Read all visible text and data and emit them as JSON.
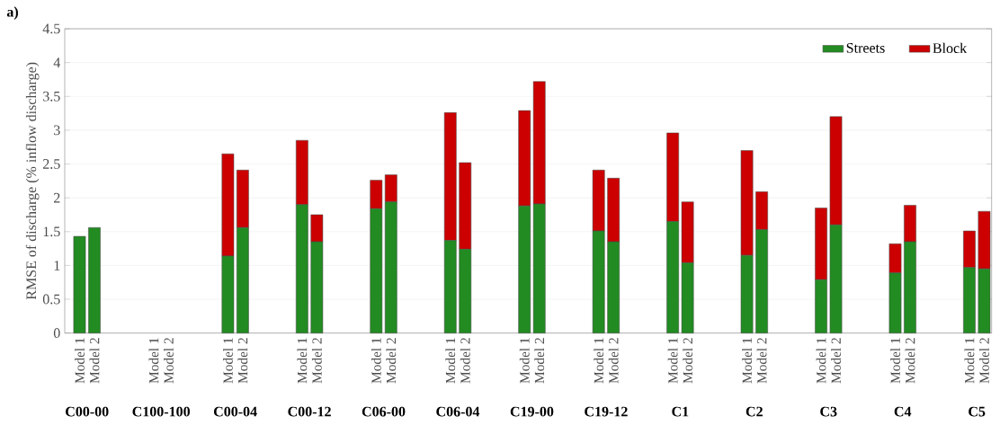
{
  "chart_data": {
    "type": "bar",
    "title": "a)",
    "ylabel": "RMSE of discharge (% inflow discharge)",
    "categories": [
      "Model 1",
      "Model 2",
      null,
      null,
      null,
      "Model 1",
      "Model 2",
      null,
      null,
      null,
      "Model 1",
      "Model 2",
      null,
      null,
      null,
      "Model 1",
      "Model 2",
      null,
      null,
      null,
      "Model 1",
      "Model 2",
      null,
      null,
      null,
      "Model 1",
      "Model 2",
      null,
      null,
      null,
      "Model 1",
      "Model 2",
      null,
      null,
      null,
      "Model 1",
      "Model 2",
      null,
      null,
      null,
      "Model 1",
      "Model 2",
      null,
      null,
      null,
      "Model 1",
      "Model 2",
      null,
      null,
      null,
      "Model 1",
      "Model 2",
      null,
      null,
      null,
      "Model 1",
      "Model 2",
      null,
      null,
      null,
      "Model 1",
      "Model 2"
    ],
    "annotations": [
      "C00-00",
      "C100-100",
      "C00-04",
      "C00-12",
      "C06-00",
      "C06-04",
      "C19-00",
      "C19-12",
      "C1",
      "C2",
      "C3",
      "C4",
      "C5"
    ],
    "stacked": true,
    "series": [
      {
        "name": "Streets",
        "color": "#228b22",
        "values": [
          1.43,
          1.56,
          null,
          null,
          null,
          null,
          null,
          null,
          null,
          null,
          1.14,
          1.56,
          null,
          null,
          null,
          1.9,
          1.35,
          null,
          null,
          null,
          1.84,
          1.94,
          null,
          null,
          null,
          1.37,
          1.24,
          null,
          null,
          null,
          1.88,
          1.91,
          null,
          null,
          null,
          1.51,
          1.35,
          null,
          null,
          null,
          1.65,
          1.04,
          null,
          null,
          null,
          1.15,
          1.53,
          null,
          null,
          null,
          0.79,
          1.6,
          null,
          null,
          null,
          0.89,
          1.35,
          null,
          null,
          null,
          0.97,
          0.95
        ]
      },
      {
        "name": "Block",
        "color": "#cc0000",
        "values": [
          null,
          null,
          null,
          null,
          null,
          null,
          null,
          null,
          null,
          null,
          1.51,
          0.85,
          null,
          null,
          null,
          0.95,
          0.4,
          null,
          null,
          null,
          0.42,
          0.4,
          null,
          null,
          null,
          1.89,
          1.28,
          null,
          null,
          null,
          1.41,
          1.81,
          null,
          null,
          null,
          0.9,
          0.94,
          null,
          null,
          null,
          1.31,
          0.9,
          null,
          null,
          null,
          1.55,
          0.56,
          null,
          null,
          null,
          1.06,
          1.6,
          null,
          null,
          null,
          0.43,
          0.54,
          null,
          null,
          null,
          0.54,
          0.85
        ]
      }
    ],
    "ylim": [
      0,
      4.5
    ],
    "yticks": [
      0,
      0.5,
      1,
      1.5,
      2,
      2.5,
      3,
      3.5,
      4,
      4.5
    ],
    "grid": "y",
    "legend": "top right"
  }
}
